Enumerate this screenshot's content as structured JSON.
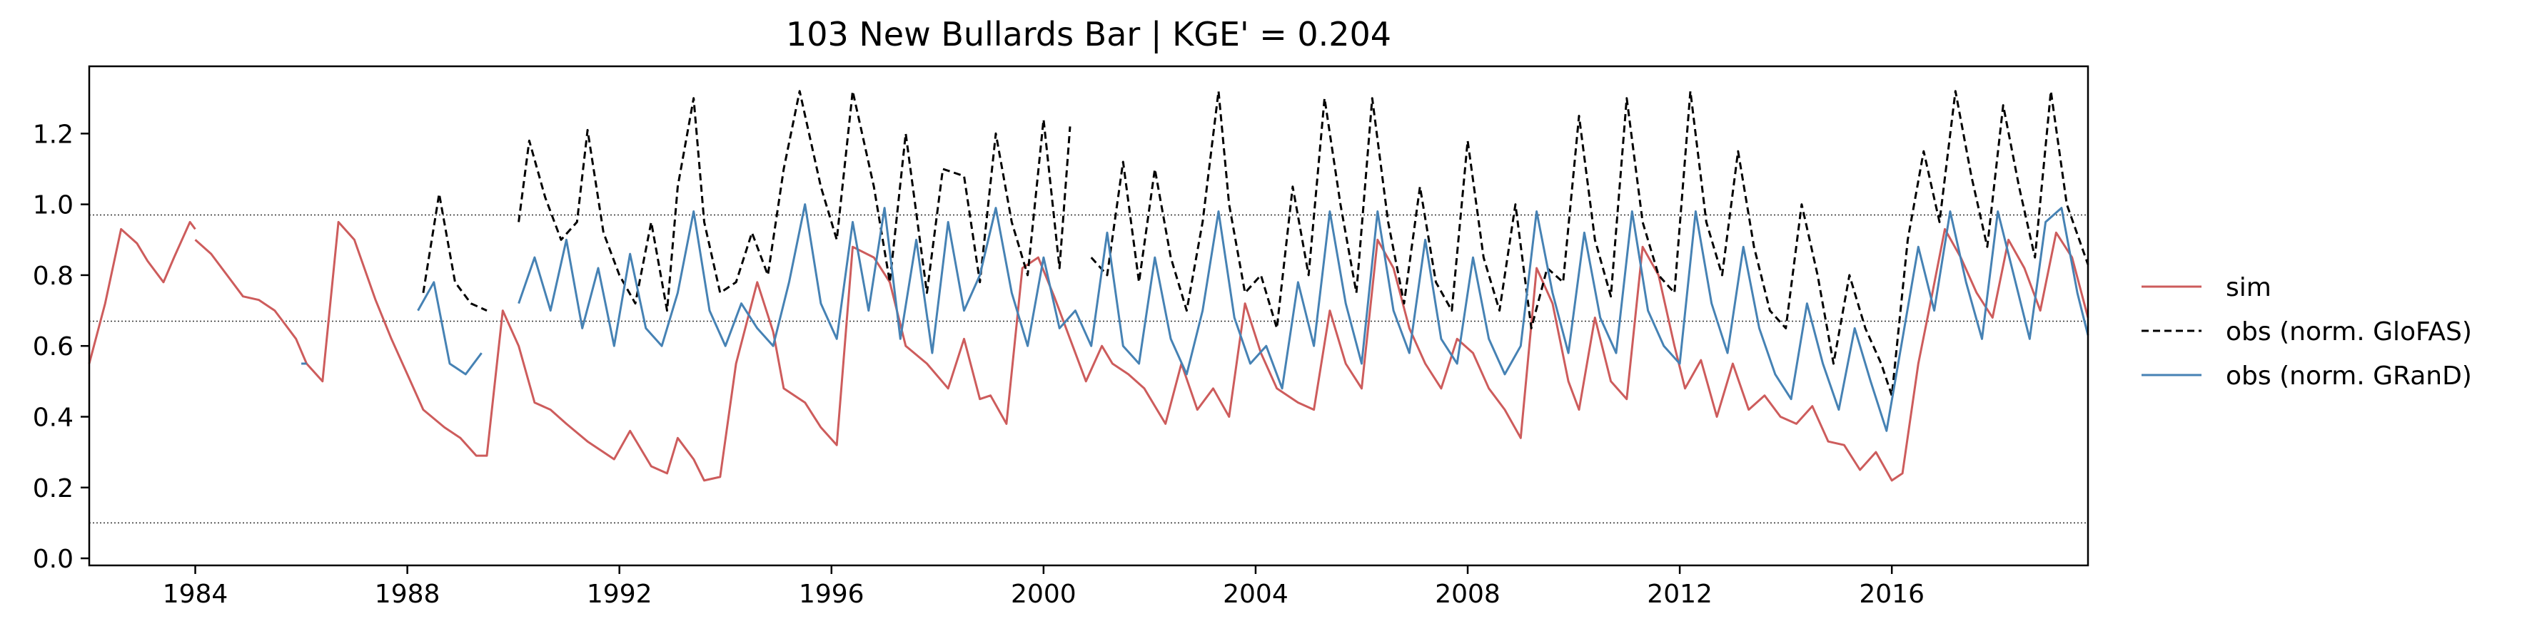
{
  "chart_data": {
    "type": "line",
    "title": "103  New Bullards Bar | KGE' = 0.204",
    "xlabel": "",
    "ylabel": "",
    "xlim": [
      1982.0,
      2019.7
    ],
    "ylim": [
      -0.02,
      1.39
    ],
    "xticks": [
      1984,
      1988,
      1992,
      1996,
      2000,
      2004,
      2008,
      2012,
      2016
    ],
    "yticks": [
      0.0,
      0.2,
      0.4,
      0.6,
      0.8,
      1.0,
      1.2
    ],
    "ytick_labels": [
      "0.0",
      "0.2",
      "0.4",
      "0.6",
      "0.8",
      "1.0",
      "1.2"
    ],
    "reference_lines": [
      0.97,
      0.67,
      0.1
    ],
    "grid": false,
    "legend_position": "right",
    "series": [
      {
        "name": "sim",
        "color": "#cd5c5c",
        "style": "solid",
        "x": [
          1982.0,
          1982.3,
          1982.6,
          1982.9,
          1983.1,
          1983.4,
          1983.6,
          1983.9,
          1984.0,
          null,
          1984.0,
          1984.3,
          1984.6,
          1984.9,
          1985.2,
          1985.5,
          1985.7,
          1985.9,
          1986.1,
          1986.4,
          1986.7,
          1987.0,
          1987.4,
          1987.7,
          1988.0,
          1988.3,
          1988.7,
          1989.0,
          1989.3,
          1989.5,
          1989.8,
          1990.1,
          1990.4,
          1990.7,
          1991.0,
          1991.4,
          1991.7,
          1991.9,
          1992.2,
          1992.6,
          1992.9,
          1993.1,
          1993.4,
          1993.6,
          1993.9,
          1994.2,
          1994.6,
          1994.9,
          1995.1,
          1995.5,
          1995.8,
          1996.1,
          1996.4,
          1996.8,
          1997.1,
          1997.4,
          1997.8,
          1998.2,
          1998.5,
          1998.8,
          1999.0,
          1999.3,
          1999.6,
          1999.9,
          2000.2,
          2000.5,
          2000.8,
          2001.1,
          2001.3,
          2001.6,
          2001.9,
          2002.3,
          2002.6,
          2002.9,
          2003.2,
          2003.5,
          2003.8,
          2004.1,
          2004.4,
          2004.8,
          2005.1,
          2005.4,
          2005.7,
          2006.0,
          2006.3,
          2006.6,
          2006.9,
          2007.2,
          2007.5,
          2007.8,
          2008.1,
          2008.4,
          2008.7,
          2009.0,
          2009.3,
          2009.6,
          2009.9,
          2010.1,
          2010.4,
          2010.7,
          2011.0,
          2011.3,
          2011.6,
          2011.9,
          2012.1,
          2012.4,
          2012.7,
          2013.0,
          2013.3,
          2013.6,
          2013.9,
          2014.2,
          2014.5,
          2014.8,
          2015.1,
          2015.4,
          2015.7,
          2016.0,
          2016.2,
          2016.5,
          2016.7,
          2017.0,
          2017.3,
          2017.6,
          2017.9,
          2018.2,
          2018.5,
          2018.8,
          2019.1,
          2019.4,
          2019.7
        ],
        "y": [
          0.55,
          0.72,
          0.93,
          0.89,
          0.84,
          0.78,
          0.85,
          0.95,
          0.93,
          null,
          0.9,
          0.86,
          0.8,
          0.74,
          0.73,
          0.7,
          0.66,
          0.62,
          0.55,
          0.5,
          0.95,
          0.9,
          0.73,
          0.62,
          0.52,
          0.42,
          0.37,
          0.34,
          0.29,
          0.29,
          0.7,
          0.6,
          0.44,
          0.42,
          0.38,
          0.33,
          0.3,
          0.28,
          0.36,
          0.26,
          0.24,
          0.34,
          0.28,
          0.22,
          0.23,
          0.55,
          0.78,
          0.64,
          0.48,
          0.44,
          0.37,
          0.32,
          0.88,
          0.85,
          0.78,
          0.6,
          0.55,
          0.48,
          0.62,
          0.45,
          0.46,
          0.38,
          0.82,
          0.85,
          0.74,
          0.62,
          0.5,
          0.6,
          0.55,
          0.52,
          0.48,
          0.38,
          0.55,
          0.42,
          0.48,
          0.4,
          0.72,
          0.58,
          0.48,
          0.44,
          0.42,
          0.7,
          0.55,
          0.48,
          0.9,
          0.82,
          0.65,
          0.55,
          0.48,
          0.62,
          0.58,
          0.48,
          0.42,
          0.34,
          0.82,
          0.72,
          0.5,
          0.42,
          0.68,
          0.5,
          0.45,
          0.88,
          0.8,
          0.6,
          0.48,
          0.56,
          0.4,
          0.55,
          0.42,
          0.46,
          0.4,
          0.38,
          0.43,
          0.33,
          0.32,
          0.25,
          0.3,
          0.22,
          0.24,
          0.55,
          0.7,
          0.93,
          0.85,
          0.75,
          0.68,
          0.9,
          0.82,
          0.7,
          0.92,
          0.85,
          0.68
        ]
      },
      {
        "name": "obs (norm. GloFAS)",
        "color": "#000000",
        "style": "dashed",
        "x": [
          1988.3,
          1988.6,
          1988.9,
          1989.2,
          1989.5,
          null,
          1990.1,
          1990.3,
          1990.6,
          1990.9,
          1991.2,
          1991.4,
          1991.7,
          1992.0,
          1992.3,
          1992.6,
          1992.9,
          1993.1,
          1993.4,
          1993.6,
          1993.9,
          1994.2,
          1994.5,
          1994.8,
          1995.1,
          1995.4,
          1995.8,
          1996.1,
          1996.4,
          1996.8,
          1997.1,
          1997.4,
          1997.8,
          1998.1,
          1998.5,
          1998.8,
          1999.1,
          1999.4,
          1999.7,
          2000.0,
          2000.3,
          2000.5,
          null,
          2000.9,
          2001.2,
          2001.5,
          2001.8,
          2002.1,
          2002.4,
          2002.7,
          2003.0,
          2003.3,
          2003.5,
          2003.8,
          2004.1,
          2004.4,
          2004.7,
          2005.0,
          2005.3,
          2005.6,
          2005.9,
          2006.2,
          2006.5,
          2006.8,
          2007.1,
          2007.4,
          2007.7,
          2008.0,
          2008.3,
          2008.6,
          2008.9,
          2009.2,
          2009.5,
          2009.8,
          2010.1,
          2010.4,
          2010.7,
          2011.0,
          2011.3,
          2011.6,
          2011.9,
          2012.2,
          2012.5,
          2012.8,
          2013.1,
          2013.4,
          2013.7,
          2014.0,
          2014.3,
          2014.6,
          2014.9,
          2015.2,
          2015.5,
          2015.8,
          2016.0,
          2016.3,
          2016.6,
          2016.9,
          2017.2,
          2017.5,
          2017.8,
          2018.1,
          2018.4,
          2018.7,
          2019.0,
          2019.3,
          2019.7
        ],
        "y": [
          0.75,
          1.03,
          0.78,
          0.72,
          0.7,
          null,
          0.95,
          1.18,
          1.02,
          0.9,
          0.95,
          1.21,
          0.92,
          0.8,
          0.72,
          0.95,
          0.7,
          1.05,
          1.3,
          0.95,
          0.75,
          0.78,
          0.92,
          0.8,
          1.1,
          1.32,
          1.05,
          0.9,
          1.32,
          1.05,
          0.78,
          1.2,
          0.75,
          1.1,
          1.08,
          0.78,
          1.2,
          0.95,
          0.8,
          1.24,
          0.82,
          1.22,
          null,
          0.85,
          0.8,
          1.12,
          0.78,
          1.1,
          0.85,
          0.7,
          0.95,
          1.32,
          1.0,
          0.75,
          0.8,
          0.65,
          1.05,
          0.8,
          1.3,
          1.0,
          0.75,
          1.3,
          0.95,
          0.72,
          1.05,
          0.78,
          0.7,
          1.18,
          0.85,
          0.7,
          1.0,
          0.65,
          0.82,
          0.78,
          1.25,
          0.9,
          0.74,
          1.3,
          0.95,
          0.8,
          0.75,
          1.32,
          0.95,
          0.8,
          1.15,
          0.88,
          0.7,
          0.65,
          1.0,
          0.8,
          0.55,
          0.8,
          0.65,
          0.55,
          0.46,
          0.9,
          1.15,
          0.95,
          1.32,
          1.08,
          0.88,
          1.28,
          1.05,
          0.85,
          1.32,
          1.0,
          0.83
        ]
      },
      {
        "name": "obs (norm. GRanD)",
        "color": "#4682b4",
        "style": "solid",
        "x": [
          1986.0,
          1986.1,
          null,
          1988.2,
          1988.5,
          1988.8,
          1989.1,
          1989.4,
          null,
          1990.1,
          1990.4,
          1990.7,
          1991.0,
          1991.3,
          1991.6,
          1991.9,
          1992.2,
          1992.5,
          1992.8,
          1993.1,
          1993.4,
          1993.7,
          1994.0,
          1994.3,
          1994.6,
          1994.9,
          1995.2,
          1995.5,
          1995.8,
          1996.1,
          1996.4,
          1996.7,
          1997.0,
          1997.3,
          1997.6,
          1997.9,
          1998.2,
          1998.5,
          1998.8,
          1999.1,
          1999.4,
          1999.7,
          2000.0,
          2000.3,
          2000.6,
          2000.9,
          2001.2,
          2001.5,
          2001.8,
          2002.1,
          2002.4,
          2002.7,
          2003.0,
          2003.3,
          2003.6,
          2003.9,
          2004.2,
          2004.5,
          2004.8,
          2005.1,
          2005.4,
          2005.7,
          2006.0,
          2006.3,
          2006.6,
          2006.9,
          2007.2,
          2007.5,
          2007.8,
          2008.1,
          2008.4,
          2008.7,
          2009.0,
          2009.3,
          2009.6,
          2009.9,
          2010.2,
          2010.5,
          2010.8,
          2011.1,
          2011.4,
          2011.7,
          2012.0,
          2012.3,
          2012.6,
          2012.9,
          2013.2,
          2013.5,
          2013.8,
          2014.1,
          2014.4,
          2014.7,
          2015.0,
          2015.3,
          2015.6,
          2015.9,
          2016.2,
          2016.5,
          2016.8,
          2017.1,
          2017.4,
          2017.7,
          2018.0,
          2018.3,
          2018.6,
          2018.9,
          2019.2,
          2019.5,
          2019.7
        ],
        "y": [
          0.55,
          0.55,
          null,
          0.7,
          0.78,
          0.55,
          0.52,
          0.58,
          null,
          0.72,
          0.85,
          0.7,
          0.9,
          0.65,
          0.82,
          0.6,
          0.86,
          0.65,
          0.6,
          0.75,
          0.98,
          0.7,
          0.6,
          0.72,
          0.65,
          0.6,
          0.78,
          1.0,
          0.72,
          0.62,
          0.95,
          0.7,
          0.99,
          0.62,
          0.9,
          0.58,
          0.95,
          0.7,
          0.8,
          0.99,
          0.75,
          0.6,
          0.85,
          0.65,
          0.7,
          0.6,
          0.92,
          0.6,
          0.55,
          0.85,
          0.62,
          0.52,
          0.7,
          0.98,
          0.68,
          0.55,
          0.6,
          0.48,
          0.78,
          0.6,
          0.98,
          0.72,
          0.55,
          0.98,
          0.7,
          0.58,
          0.9,
          0.62,
          0.55,
          0.85,
          0.62,
          0.52,
          0.6,
          0.98,
          0.75,
          0.58,
          0.92,
          0.68,
          0.58,
          0.98,
          0.7,
          0.6,
          0.55,
          0.98,
          0.72,
          0.58,
          0.88,
          0.65,
          0.52,
          0.45,
          0.72,
          0.55,
          0.42,
          0.65,
          0.5,
          0.36,
          0.62,
          0.88,
          0.7,
          0.98,
          0.78,
          0.62,
          0.98,
          0.8,
          0.62,
          0.95,
          0.99,
          0.75,
          0.63
        ]
      }
    ]
  }
}
